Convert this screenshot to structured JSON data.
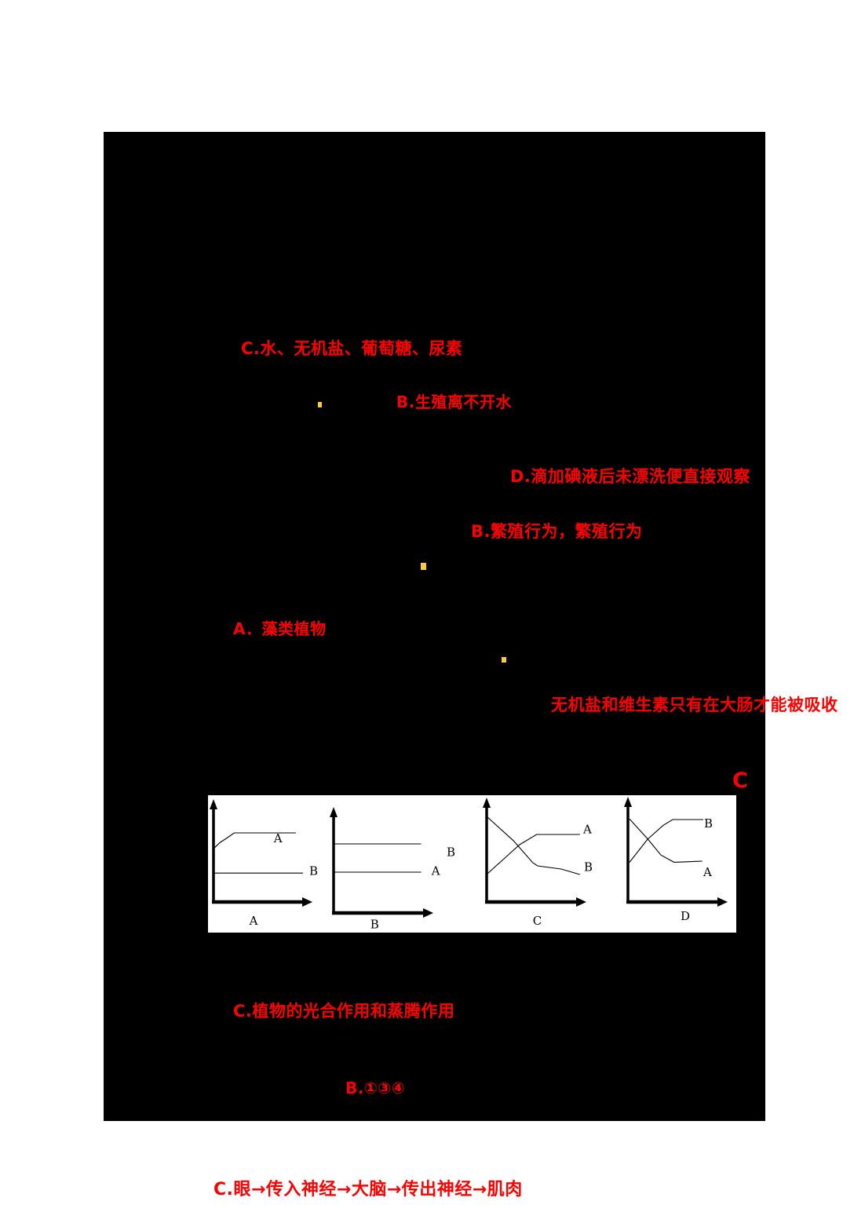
{
  "page": {
    "background": "#ffffff",
    "panel_color": "#000000",
    "text_color": "#ff0000",
    "dot_color": "#ffcc33",
    "chart_ink": "#000000"
  },
  "texts": {
    "opt_c_water": "C.水、无机盐、葡萄糖、尿素",
    "opt_b_water": "B.生殖离不开水",
    "opt_d_iodine": "D.滴加碘液后未漂洗便直接观察",
    "opt_b_breeding": "B.繁殖行为，繁殖行为",
    "opt_a_algae": "A．藻类植物",
    "stmt_minerals": "无机盐和维生素只有在大肠才能被吸收",
    "answer_c": "C",
    "opt_c_photo": "C.植物的光合作用和蒸腾作用",
    "opt_b_134": "B.①③④",
    "opt_c_reflex": "C.眼→传入神经→大脑→传出神经→肌肉"
  },
  "chart_data": [
    {
      "id": "A",
      "type": "line",
      "xlabel": "A",
      "xlabel_pos": [
        0.38,
        -0.25
      ],
      "axes": {
        "arrows": true,
        "grid": false,
        "x_range": [
          0,
          1
        ],
        "y_range": [
          0,
          1
        ]
      },
      "series": [
        {
          "name": "A",
          "trend": "rises then plateaus high",
          "points": [
            [
              0,
              0.59
            ],
            [
              0.07,
              0.66
            ],
            [
              0.13,
              0.7
            ],
            [
              0.22,
              0.765
            ],
            [
              0.875,
              0.765
            ]
          ],
          "label_pos": [
            0.64,
            0.66
          ]
        },
        {
          "name": "B",
          "trend": "constant low",
          "points": [
            [
              0,
              0.32
            ],
            [
              0.95,
              0.32
            ]
          ],
          "label_pos": [
            1.017,
            0.3
          ]
        }
      ]
    },
    {
      "id": "B",
      "type": "line",
      "xlabel": "B",
      "xlabel_pos": [
        0.39,
        -0.17
      ],
      "axes": {
        "arrows": true,
        "grid": false,
        "x_range": [
          0,
          1
        ],
        "y_range": [
          0,
          1
        ]
      },
      "series": [
        {
          "name": "B",
          "trend": "constant high",
          "points": [
            [
              0,
              0.765
            ],
            [
              0.93,
              0.765
            ]
          ],
          "label_pos": [
            1.2,
            0.63
          ]
        },
        {
          "name": "A",
          "trend": "constant middle",
          "points": [
            [
              0,
              0.452
            ],
            [
              0.93,
              0.452
            ]
          ],
          "label_pos": [
            1.04,
            0.42
          ]
        }
      ]
    },
    {
      "id": "C",
      "type": "line",
      "xlabel": "C",
      "xlabel_pos": [
        0.49,
        -0.25
      ],
      "axes": {
        "arrows": true,
        "grid": false,
        "x_range": [
          0,
          1
        ],
        "y_range": [
          0,
          1
        ]
      },
      "series": [
        {
          "name": "A",
          "trend": "rises then plateaus",
          "points": [
            [
              0.008,
              0.313
            ],
            [
              0.183,
              0.478
            ],
            [
              0.35,
              0.635
            ],
            [
              0.53,
              0.748
            ],
            [
              0.99,
              0.748
            ]
          ],
          "label_pos": [
            1.025,
            0.76
          ]
        },
        {
          "name": "B",
          "trend": "falls continuously",
          "points": [
            [
              0.008,
              0.94
            ],
            [
              0.283,
              0.68
            ],
            [
              0.49,
              0.435
            ],
            [
              0.54,
              0.4
            ],
            [
              0.79,
              0.365
            ],
            [
              0.99,
              0.304
            ]
          ],
          "label_pos": [
            1.033,
            0.345
          ]
        }
      ]
    },
    {
      "id": "D",
      "type": "line",
      "xlabel": "D",
      "xlabel_pos": [
        0.558,
        -0.2
      ],
      "axes": {
        "arrows": true,
        "grid": false,
        "x_range": [
          0,
          1
        ],
        "y_range": [
          0,
          1
        ]
      },
      "series": [
        {
          "name": "B",
          "trend": "rises then plateaus high",
          "points": [
            [
              0.017,
              0.44
            ],
            [
              0.208,
              0.695
            ],
            [
              0.375,
              0.85
            ],
            [
              0.475,
              0.913
            ],
            [
              0.8,
              0.913
            ]
          ],
          "label_pos": [
            0.808,
            0.825
          ]
        },
        {
          "name": "A",
          "trend": "falls then levels off",
          "points": [
            [
              0.017,
              0.92
            ],
            [
              0.208,
              0.7
            ],
            [
              0.35,
              0.52
            ],
            [
              0.49,
              0.44
            ],
            [
              0.79,
              0.452
            ]
          ],
          "label_pos": [
            0.8,
            0.285
          ]
        }
      ]
    }
  ]
}
